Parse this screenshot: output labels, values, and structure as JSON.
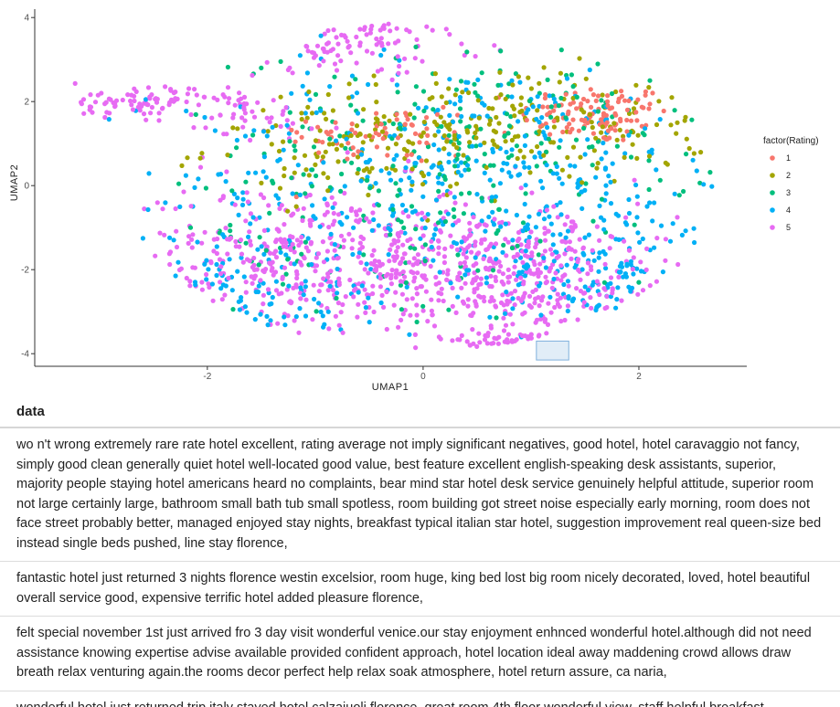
{
  "chart_data": {
    "type": "scatter",
    "title": "",
    "xlabel": "UMAP1",
    "ylabel": "UMAP2",
    "xlim": [
      -3.6,
      3.0
    ],
    "ylim": [
      -4.3,
      4.2
    ],
    "x_ticks": [
      -2,
      0,
      2
    ],
    "y_ticks": [
      -4,
      -2,
      0,
      2,
      4
    ],
    "grid": false,
    "legend": {
      "title": "factor(Rating)",
      "placement": "right",
      "entries": [
        {
          "label": "1",
          "color": "#F8766D"
        },
        {
          "label": "2",
          "color": "#A3A500"
        },
        {
          "label": "3",
          "color": "#00BF7D"
        },
        {
          "label": "4",
          "color": "#00B0F6"
        },
        {
          "label": "5",
          "color": "#E76BF3"
        }
      ]
    },
    "brush": {
      "x": [
        1.05,
        1.35
      ],
      "y": [
        -4.15,
        -3.7
      ]
    },
    "clusters": [
      {
        "rating": "1",
        "cx": 1.6,
        "cy": 1.7,
        "sx": 0.35,
        "sy": 0.35,
        "n": 110
      },
      {
        "rating": "1",
        "cx": -0.4,
        "cy": 1.2,
        "sx": 0.5,
        "sy": 0.35,
        "n": 70
      },
      {
        "rating": "2",
        "cx": 0.9,
        "cy": 1.4,
        "sx": 0.9,
        "sy": 0.7,
        "n": 190
      },
      {
        "rating": "2",
        "cx": -0.6,
        "cy": 0.9,
        "sx": 0.7,
        "sy": 0.6,
        "n": 90
      },
      {
        "rating": "3",
        "cx": 0.5,
        "cy": 1.0,
        "sx": 1.1,
        "sy": 1.1,
        "n": 210
      },
      {
        "rating": "3",
        "cx": -0.6,
        "cy": -1.5,
        "sx": 1.2,
        "sy": 0.9,
        "n": 70
      },
      {
        "rating": "4",
        "cx": 0.4,
        "cy": 0.2,
        "sx": 1.3,
        "sy": 1.4,
        "n": 420
      },
      {
        "rating": "4",
        "cx": -1.5,
        "cy": -2.4,
        "sx": 0.6,
        "sy": 0.9,
        "n": 110
      },
      {
        "rating": "4",
        "cx": 1.6,
        "cy": -2.2,
        "sx": 0.5,
        "sy": 0.8,
        "n": 110
      },
      {
        "rating": "5",
        "cx": -0.8,
        "cy": -1.8,
        "sx": 1.1,
        "sy": 0.9,
        "n": 520
      },
      {
        "rating": "5",
        "cx": 0.9,
        "cy": -2.2,
        "sx": 0.8,
        "sy": 0.8,
        "n": 300
      },
      {
        "rating": "5",
        "cx": -2.6,
        "cy": 2.0,
        "sx": 0.4,
        "sy": 0.18,
        "n": 90
      },
      {
        "rating": "5",
        "cx": -0.6,
        "cy": 3.5,
        "sx": 0.6,
        "sy": 0.4,
        "n": 90
      },
      {
        "rating": "5",
        "cx": -1.7,
        "cy": 1.6,
        "sx": 0.4,
        "sy": 0.4,
        "n": 40
      },
      {
        "rating": "5",
        "cx": 1.2,
        "cy": -3.8,
        "sx": 0.35,
        "sy": 0.12,
        "n": 40
      }
    ]
  },
  "table": {
    "header": "data",
    "rows": [
      "wo n't wrong extremely rare rate hotel excellent, rating average not imply significant negatives, good hotel, hotel caravaggio not fancy, simply good clean generally quiet hotel well-located good value, best feature excellent english-speaking desk assistants, superior, majority people staying hotel americans heard no complaints, bear mind star hotel desk service genuinely helpful attitude, superior room not large certainly large, bathroom small bath tub small spotless, room building got street noise especially early morning, room does not face street probably better, managed enjoyed stay nights, breakfast typical italian star hotel, suggestion improvement real queen-size bed instead single beds pushed, line stay florence,",
      "fantastic hotel just returned 3 nights florence westin excelsior, room huge, king bed lost big room nicely decorated, loved, hotel beautiful overall service good, expensive terrific hotel added pleasure florence,",
      "felt special november 1st just arrived fro 3 day visit wonderful venice.our stay enjoyment enhnced wonderful hotel.although did not need assistance knowing expertise advise available provided confident approach, hotel location ideal away maddening crowd allows draw breath relax venturing again.the rooms decor perfect help relax soak atmosphere, hotel return assure, ca naria,",
      "wonderful hotel just returned trip italy stayed hotel calzaiuoli florence, great room 4th floor wonderful view, staff helpful breakfast"
    ]
  }
}
